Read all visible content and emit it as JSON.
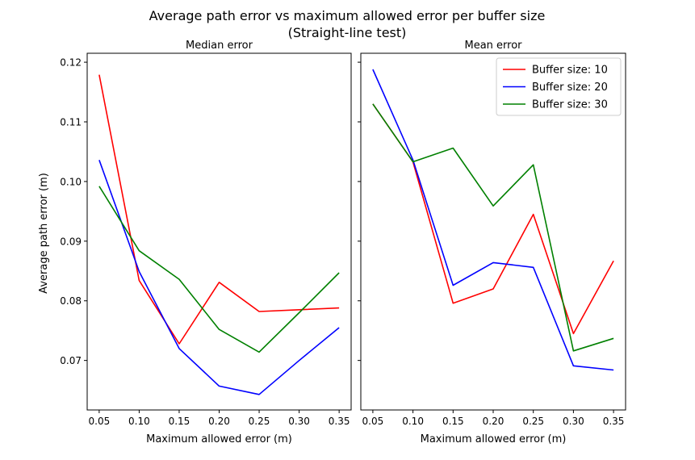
{
  "figure": {
    "title_line1": "Average path error vs maximum allowed error per buffer size",
    "title_line2": "(Straight-line test)"
  },
  "chart_data": [
    {
      "type": "line",
      "title": "Median error",
      "xlabel": "Maximum allowed error (m)",
      "ylabel": "Average path error (m)",
      "x": [
        0.05,
        0.1,
        0.15,
        0.2,
        0.25,
        0.3,
        0.35
      ],
      "xticks": [
        "0.05",
        "0.10",
        "0.15",
        "0.20",
        "0.25",
        "0.30",
        "0.35"
      ],
      "yticks": [
        "0.07",
        "0.08",
        "0.09",
        "0.10",
        "0.11",
        "0.12"
      ],
      "xlim": [
        0.035,
        0.365
      ],
      "ylim": [
        0.0617,
        0.1215
      ],
      "grid": false,
      "legend": null,
      "series": [
        {
          "name": "Buffer size: 10",
          "color": "#ff0000",
          "values": [
            0.1179,
            0.0834,
            0.0728,
            0.0831,
            0.0782,
            0.0785,
            0.0788
          ]
        },
        {
          "name": "Buffer size: 20",
          "color": "#0000ff",
          "values": [
            0.1036,
            0.0849,
            0.072,
            0.0657,
            0.0643,
            0.07,
            0.0755
          ]
        },
        {
          "name": "Buffer size: 30",
          "color": "#008000",
          "values": [
            0.0992,
            0.0884,
            0.0836,
            0.0752,
            0.0714,
            0.078,
            0.0847
          ]
        }
      ]
    },
    {
      "type": "line",
      "title": "Mean error",
      "xlabel": "Maximum allowed error (m)",
      "ylabel": "",
      "x": [
        0.05,
        0.1,
        0.15,
        0.2,
        0.25,
        0.3,
        0.35
      ],
      "xticks": [
        "0.05",
        "0.10",
        "0.15",
        "0.20",
        "0.25",
        "0.30",
        "0.35"
      ],
      "yticks": [],
      "xlim": [
        0.035,
        0.365
      ],
      "ylim": [
        0.0617,
        0.1215
      ],
      "grid": false,
      "legend": "top-right",
      "series": [
        {
          "name": "Buffer size: 10",
          "color": "#ff0000",
          "values": [
            0.113,
            0.1033,
            0.0796,
            0.082,
            0.0945,
            0.0745,
            0.0867
          ]
        },
        {
          "name": "Buffer size: 20",
          "color": "#0000ff",
          "values": [
            0.1188,
            0.1036,
            0.0826,
            0.0864,
            0.0856,
            0.0691,
            0.0684
          ]
        },
        {
          "name": "Buffer size: 30",
          "color": "#008000",
          "values": [
            0.113,
            0.1033,
            0.1056,
            0.0959,
            0.1028,
            0.0716,
            0.0737
          ]
        }
      ]
    }
  ]
}
